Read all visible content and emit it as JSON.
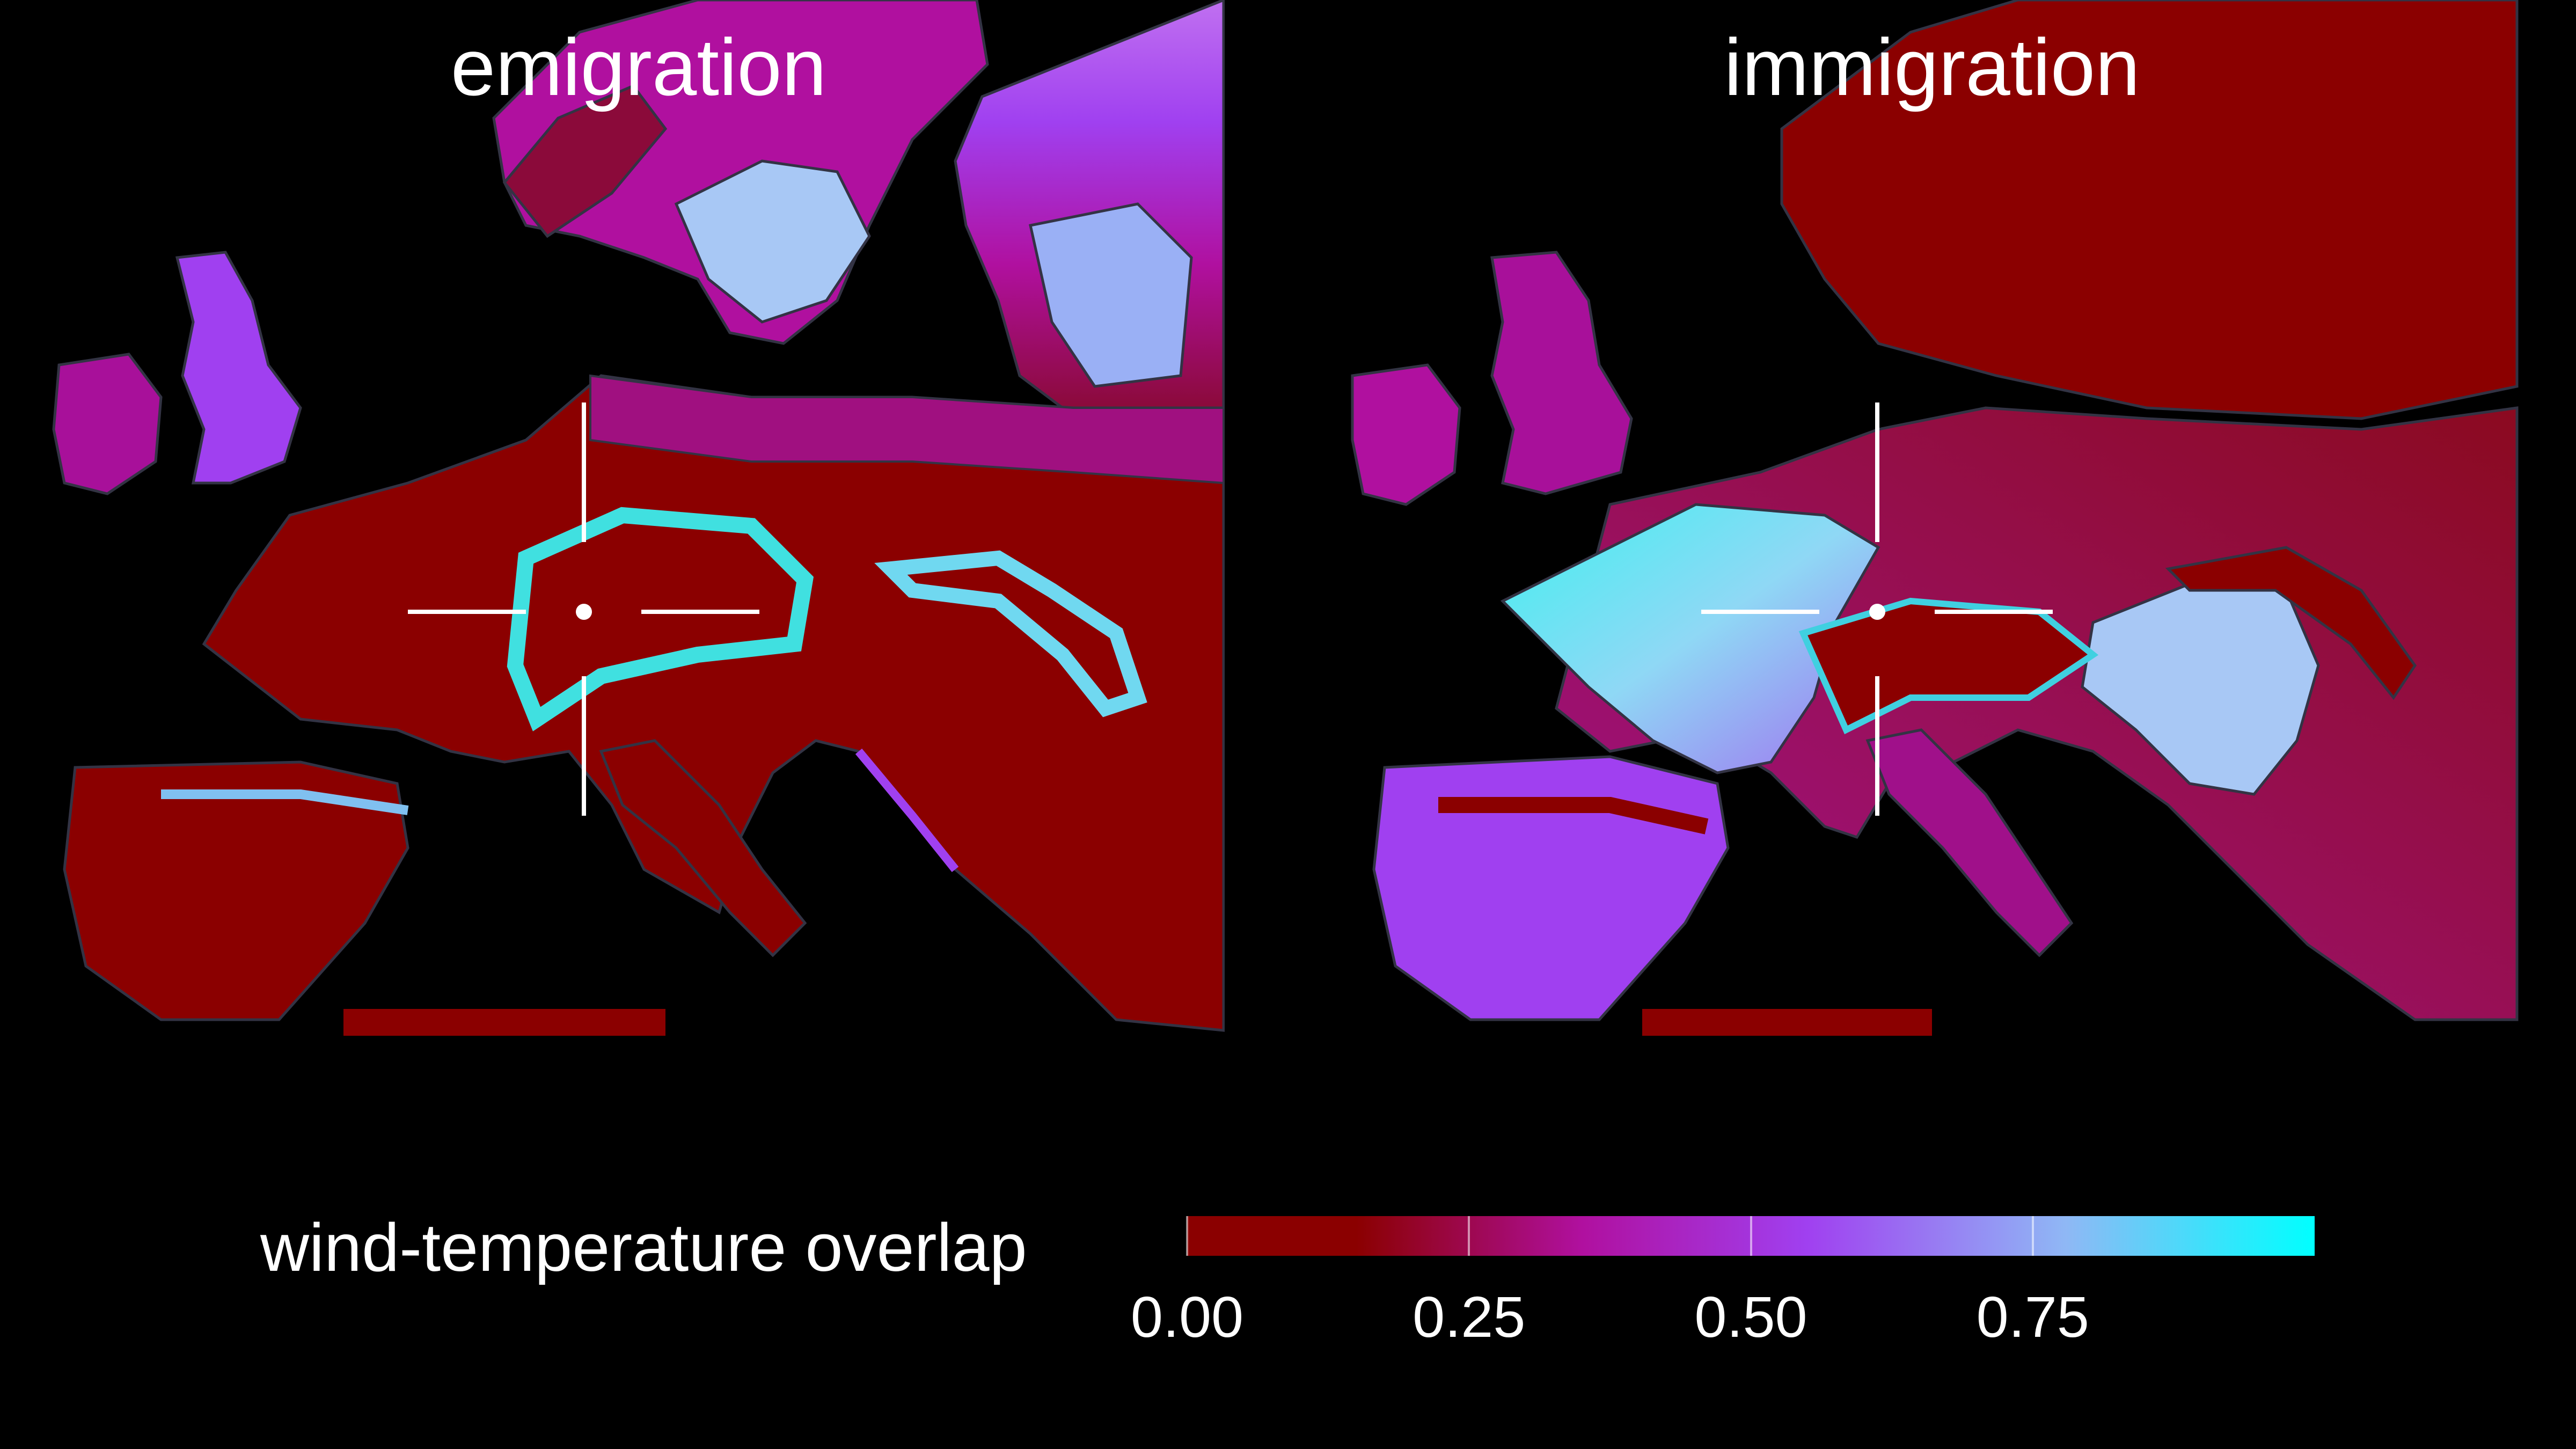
{
  "panels": [
    {
      "title": "emigration"
    },
    {
      "title": "immigration"
    }
  ],
  "legend": {
    "label": "wind-temperature overlap",
    "range": [
      0,
      1
    ],
    "ticks": [
      {
        "value": 0.0,
        "label": "0.00"
      },
      {
        "value": 0.25,
        "label": "0.25"
      },
      {
        "value": 0.5,
        "label": "0.50"
      },
      {
        "value": 0.75,
        "label": "0.75"
      }
    ],
    "color_stops": [
      {
        "value": 0.0,
        "color": "#8b0000"
      },
      {
        "value": 0.15,
        "color": "#8b0000"
      },
      {
        "value": 0.35,
        "color": "#b0109f"
      },
      {
        "value": 0.55,
        "color": "#a040f0"
      },
      {
        "value": 0.78,
        "color": "#8fb8f5"
      },
      {
        "value": 1.0,
        "color": "#00ffff"
      }
    ]
  },
  "colors": {
    "background": "#000000",
    "low": "#8b0000",
    "mid": "#b0109f",
    "high": "#00ffff",
    "contour": "#333344",
    "marker": "#ffffff"
  }
}
